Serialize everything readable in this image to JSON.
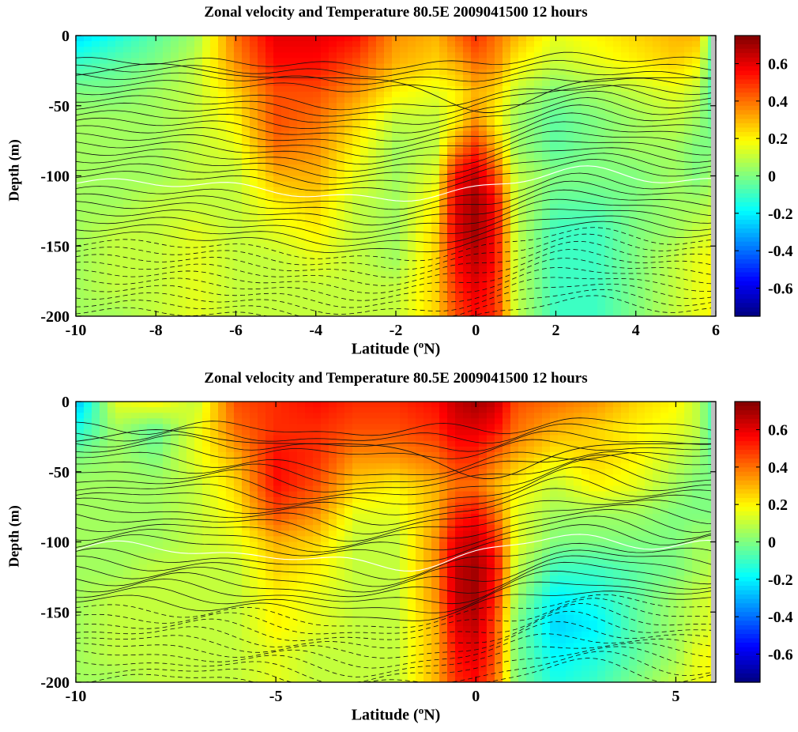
{
  "panels": [
    {
      "title": "Zonal velocity and  Temperature 80.5E 2009041500  12 hours",
      "xlabel_pre": "Latitude (",
      "xlabel_sup": "o",
      "xlabel_post": "N)",
      "ylabel": "Depth (m)",
      "chart_data": {
        "type": "heatmap",
        "title": "Zonal velocity and  Temperature 80.5E 2009041500  12 hours",
        "xlabel": "Latitude (oN)",
        "ylabel": "Depth (m)",
        "xlim": [
          -10,
          6
        ],
        "ylim": [
          -200,
          0
        ],
        "xticks": [
          -10,
          -8,
          -6,
          -4,
          -2,
          0,
          2,
          4,
          6
        ],
        "xtick_labels": [
          "-10",
          "-8",
          "-6",
          "-4",
          "-2",
          "0",
          "2",
          "4",
          "6"
        ],
        "yticks": [
          0,
          -50,
          -100,
          -150,
          -200
        ],
        "ytick_labels": [
          "0",
          "-50",
          "-100",
          "-150",
          "-200"
        ],
        "colorbar": {
          "range": [
            -0.75,
            0.75
          ],
          "ticks": [
            0.6,
            0.4,
            0.2,
            0,
            -0.2,
            -0.4,
            -0.6
          ],
          "tick_labels": [
            "0.6",
            "0.4",
            "0.2",
            "0",
            "-0.2",
            "-0.4",
            "-0.6"
          ],
          "colormap": "jet"
        },
        "latitude": [
          -10,
          -9,
          -8,
          -7,
          -6,
          -5,
          -4,
          -3,
          -2,
          -1,
          -0.5,
          0,
          0.5,
          1,
          2,
          3,
          4,
          5,
          5.5,
          6
        ],
        "depth": [
          0,
          -20,
          -40,
          -60,
          -80,
          -100,
          -120,
          -140,
          -160,
          -180,
          -200
        ],
        "velocity": [
          [
            -0.25,
            -0.15,
            -0.05,
            0.05,
            0.4,
            0.6,
            0.6,
            0.55,
            0.35,
            0.3,
            0.4,
            0.5,
            0.4,
            0.3,
            0.15,
            0.2,
            0.25,
            0.3,
            0.3,
            -0.1
          ],
          [
            -0.1,
            -0.05,
            0.0,
            0.1,
            0.35,
            0.55,
            0.55,
            0.45,
            0.3,
            0.25,
            0.3,
            0.4,
            0.35,
            0.2,
            0.1,
            0.15,
            0.2,
            0.25,
            0.2,
            -0.1
          ],
          [
            0.0,
            0.0,
            0.05,
            0.1,
            0.25,
            0.45,
            0.45,
            0.35,
            0.2,
            0.15,
            0.2,
            0.3,
            0.25,
            0.1,
            0.0,
            0.05,
            0.1,
            0.15,
            0.1,
            -0.1
          ],
          [
            0.05,
            0.05,
            0.05,
            0.1,
            0.2,
            0.45,
            0.4,
            0.25,
            0.1,
            0.1,
            0.2,
            0.35,
            0.2,
            0.05,
            -0.05,
            0.0,
            0.05,
            0.1,
            0.05,
            -0.05
          ],
          [
            0.05,
            0.05,
            0.05,
            0.1,
            0.15,
            0.4,
            0.35,
            0.2,
            0.05,
            0.1,
            0.35,
            0.5,
            0.3,
            0.05,
            -0.05,
            0.0,
            0.05,
            0.05,
            0.0,
            0.0
          ],
          [
            0.05,
            0.05,
            0.05,
            0.1,
            0.1,
            0.3,
            0.3,
            0.15,
            0.05,
            0.15,
            0.55,
            0.65,
            0.45,
            0.1,
            0.0,
            0.0,
            0.0,
            0.05,
            0.0,
            0.05
          ],
          [
            0.05,
            0.05,
            0.1,
            0.1,
            0.1,
            0.2,
            0.25,
            0.1,
            0.05,
            0.2,
            0.6,
            0.7,
            0.55,
            0.1,
            -0.05,
            -0.05,
            0.0,
            0.05,
            0.05,
            0.1
          ],
          [
            0.05,
            0.1,
            0.1,
            0.15,
            0.1,
            0.15,
            0.2,
            0.1,
            0.05,
            0.25,
            0.6,
            0.7,
            0.55,
            0.1,
            -0.1,
            -0.1,
            0.0,
            0.05,
            0.1,
            0.15
          ],
          [
            0.05,
            0.1,
            0.1,
            0.15,
            0.1,
            0.1,
            0.15,
            0.1,
            0.05,
            0.25,
            0.55,
            0.65,
            0.55,
            0.1,
            -0.1,
            -0.1,
            0.0,
            0.1,
            0.15,
            0.2
          ],
          [
            0.05,
            0.1,
            0.1,
            0.15,
            0.1,
            0.1,
            0.1,
            0.1,
            0.1,
            0.25,
            0.5,
            0.6,
            0.5,
            0.1,
            -0.1,
            -0.1,
            0.0,
            0.1,
            0.15,
            0.2
          ],
          [
            0.05,
            0.05,
            0.1,
            0.15,
            0.1,
            0.1,
            0.1,
            0.1,
            0.1,
            0.25,
            0.45,
            0.55,
            0.5,
            0.1,
            -0.1,
            -0.1,
            0.0,
            0.1,
            0.15,
            0.2
          ]
        ]
      }
    },
    {
      "title": "Zonal velocity and  Temperature 80.5E 2009041500  12 hours",
      "xlabel_pre": "Latitude (",
      "xlabel_sup": "o",
      "xlabel_post": "N)",
      "ylabel": "Depth (m)",
      "chart_data": {
        "type": "heatmap",
        "title": "Zonal velocity and  Temperature 80.5E 2009041500  12 hours",
        "xlabel": "Latitude (oN)",
        "ylabel": "Depth (m)",
        "xlim": [
          -10,
          6
        ],
        "ylim": [
          -200,
          0
        ],
        "xticks": [
          -10,
          -5,
          0,
          5
        ],
        "xtick_labels": [
          "-10",
          "-5",
          "0",
          "5"
        ],
        "yticks": [
          0,
          -50,
          -100,
          -150,
          -200
        ],
        "ytick_labels": [
          "0",
          "-50",
          "-100",
          "-150",
          "-200"
        ],
        "colorbar": {
          "range": [
            -0.75,
            0.75
          ],
          "ticks": [
            0.6,
            0.4,
            0.2,
            0,
            -0.2,
            -0.4,
            -0.6
          ],
          "tick_labels": [
            "0.6",
            "0.4",
            "0.2",
            "0",
            "-0.2",
            "-0.4",
            "-0.6"
          ],
          "colormap": "jet"
        },
        "latitude": [
          -10,
          -9,
          -8,
          -7,
          -6,
          -5,
          -4,
          -3,
          -2,
          -1,
          -0.5,
          0,
          0.5,
          1,
          2,
          3,
          4,
          5,
          5.5,
          6
        ],
        "depth": [
          0,
          -20,
          -40,
          -60,
          -80,
          -100,
          -120,
          -140,
          -160,
          -180,
          -200
        ],
        "velocity": [
          [
            -0.3,
            0.15,
            0.2,
            0.1,
            0.45,
            0.5,
            0.55,
            0.5,
            0.5,
            0.55,
            0.65,
            0.7,
            0.65,
            0.45,
            0.4,
            0.35,
            0.25,
            0.2,
            0.1,
            -0.1
          ],
          [
            -0.15,
            0.05,
            -0.05,
            0.15,
            0.4,
            0.5,
            0.5,
            0.45,
            0.45,
            0.5,
            0.6,
            0.6,
            0.55,
            0.4,
            0.3,
            0.25,
            0.2,
            0.15,
            0.1,
            -0.1
          ],
          [
            0.0,
            0.05,
            0.0,
            0.15,
            0.3,
            0.55,
            0.5,
            0.35,
            0.35,
            0.4,
            0.5,
            0.5,
            0.4,
            0.3,
            0.2,
            0.25,
            0.2,
            0.1,
            0.05,
            -0.05
          ],
          [
            0.05,
            0.05,
            0.05,
            0.1,
            0.25,
            0.55,
            0.45,
            0.25,
            0.2,
            0.3,
            0.4,
            0.4,
            0.3,
            0.2,
            0.1,
            0.2,
            0.15,
            0.05,
            0.0,
            0.0
          ],
          [
            0.05,
            0.05,
            0.05,
            0.1,
            0.2,
            0.45,
            0.35,
            0.15,
            0.15,
            0.3,
            0.5,
            0.55,
            0.4,
            0.15,
            0.05,
            0.05,
            0.05,
            0.0,
            0.0,
            0.0
          ],
          [
            0.05,
            0.05,
            0.05,
            0.1,
            0.15,
            0.3,
            0.25,
            0.1,
            0.1,
            0.35,
            0.6,
            0.65,
            0.5,
            0.15,
            0.0,
            0.0,
            0.0,
            0.0,
            0.05,
            0.05
          ],
          [
            0.05,
            0.05,
            0.1,
            0.1,
            0.1,
            0.25,
            0.2,
            0.1,
            0.1,
            0.35,
            0.65,
            0.7,
            0.55,
            0.1,
            -0.1,
            -0.1,
            -0.05,
            0.0,
            0.05,
            0.1
          ],
          [
            0.05,
            0.1,
            0.1,
            0.1,
            0.1,
            0.2,
            0.15,
            0.1,
            0.1,
            0.35,
            0.65,
            0.7,
            0.5,
            0.05,
            -0.2,
            -0.15,
            -0.05,
            0.05,
            0.1,
            0.15
          ],
          [
            0.05,
            0.1,
            0.1,
            0.1,
            0.1,
            0.2,
            0.15,
            0.1,
            0.1,
            0.3,
            0.6,
            0.65,
            0.45,
            0.0,
            -0.25,
            -0.2,
            -0.05,
            0.05,
            0.1,
            0.15
          ],
          [
            0.05,
            0.1,
            0.1,
            0.1,
            0.1,
            0.15,
            0.1,
            0.1,
            0.1,
            0.3,
            0.55,
            0.6,
            0.45,
            0.0,
            -0.2,
            -0.15,
            -0.05,
            0.05,
            0.15,
            0.2
          ],
          [
            0.05,
            0.05,
            0.1,
            0.1,
            0.1,
            0.15,
            0.1,
            0.1,
            0.1,
            0.3,
            0.5,
            0.55,
            0.4,
            0.0,
            -0.15,
            -0.1,
            0.0,
            0.1,
            0.15,
            0.2
          ]
        ]
      }
    }
  ]
}
